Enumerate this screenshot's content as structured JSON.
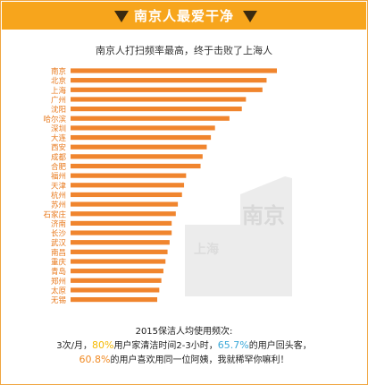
{
  "banner": {
    "title": "南京人最爱干净"
  },
  "watermark": {
    "line1": "南京",
    "line2": "上海"
  },
  "colors": {
    "bar": "#f0852e",
    "accent": "#f7a51c",
    "pct_yellow": "#f5b800",
    "pct_blue": "#3aa8d8",
    "pct_orange": "#f08a24",
    "label": "#e87a1e"
  },
  "chart_data": {
    "type": "bar",
    "orientation": "horizontal",
    "title": "南京人打扫频率最高，终于击败了上海人",
    "xlabel": "",
    "ylabel": "",
    "categories": [
      "南京",
      "北京",
      "上海",
      "广州",
      "沈阳",
      "哈尔滨",
      "深圳",
      "大连",
      "西安",
      "成都",
      "合肥",
      "福州",
      "天津",
      "杭州",
      "苏州",
      "石家庄",
      "济南",
      "长沙",
      "武汉",
      "南昌",
      "重庆",
      "青岛",
      "郑州",
      "太原",
      "无锡"
    ],
    "values": [
      100,
      95,
      93,
      85,
      83,
      77,
      70,
      68,
      66,
      64,
      63,
      56,
      55,
      54,
      52,
      51,
      49,
      49,
      48,
      47,
      46,
      45,
      44,
      43,
      42
    ],
    "xlim": [
      0,
      100
    ],
    "axis_ticks": false,
    "grid": false
  },
  "note": {
    "line1": "2015保洁人均使用频次:",
    "line2_a": "3次/月，",
    "line2_pct1": "80%",
    "line2_b": "用户家清洁时间2-3小时，",
    "line2_pct2": "65.7%",
    "line2_c": "的用户回头客，",
    "line3_pct": "60.8%",
    "line3_b": "的用户喜欢用同一位阿姨，我就稀罕你嘛利！"
  }
}
